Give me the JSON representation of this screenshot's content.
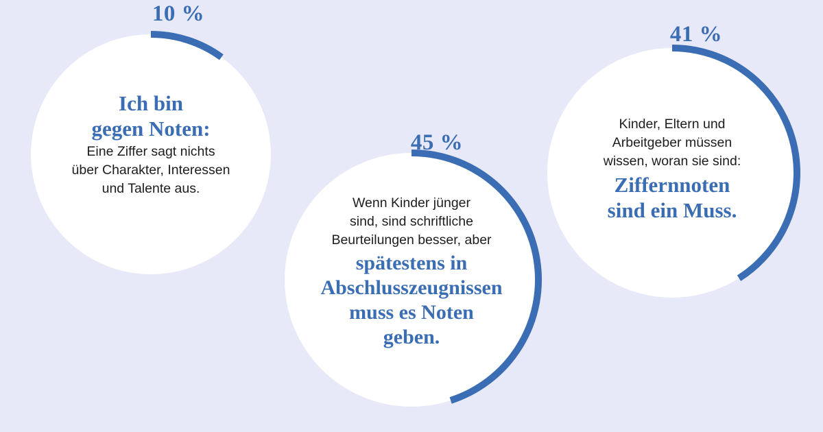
{
  "colors": {
    "background": "#e8e9f8",
    "circle": "#ffffff",
    "accent": "#3a6db3",
    "text": "#1d1d1d"
  },
  "chart_data": {
    "type": "pie",
    "unit": "%",
    "slices": [
      {
        "value": 10,
        "label_value": "10 %",
        "headline": [
          "Ich bin",
          "gegen Noten:"
        ],
        "body": [
          "Eine Ziffer sagt nichts",
          "über Charakter, Interessen",
          "und Talente aus."
        ]
      },
      {
        "value": 45,
        "label_value": "45 %",
        "body": [
          "Wenn Kinder jünger",
          "sind, sind schriftliche",
          "Beurteilungen besser, aber"
        ],
        "headline": [
          "spätestens in",
          "Abschlusszeugnissen",
          "muss es Noten",
          "geben."
        ]
      },
      {
        "value": 41,
        "label_value": "41 %",
        "body": [
          "Kinder, Eltern und",
          "Arbeitgeber müssen",
          "wissen, woran sie sind:"
        ],
        "headline": [
          "Ziffernnoten",
          "sind ein Muss."
        ]
      }
    ]
  }
}
